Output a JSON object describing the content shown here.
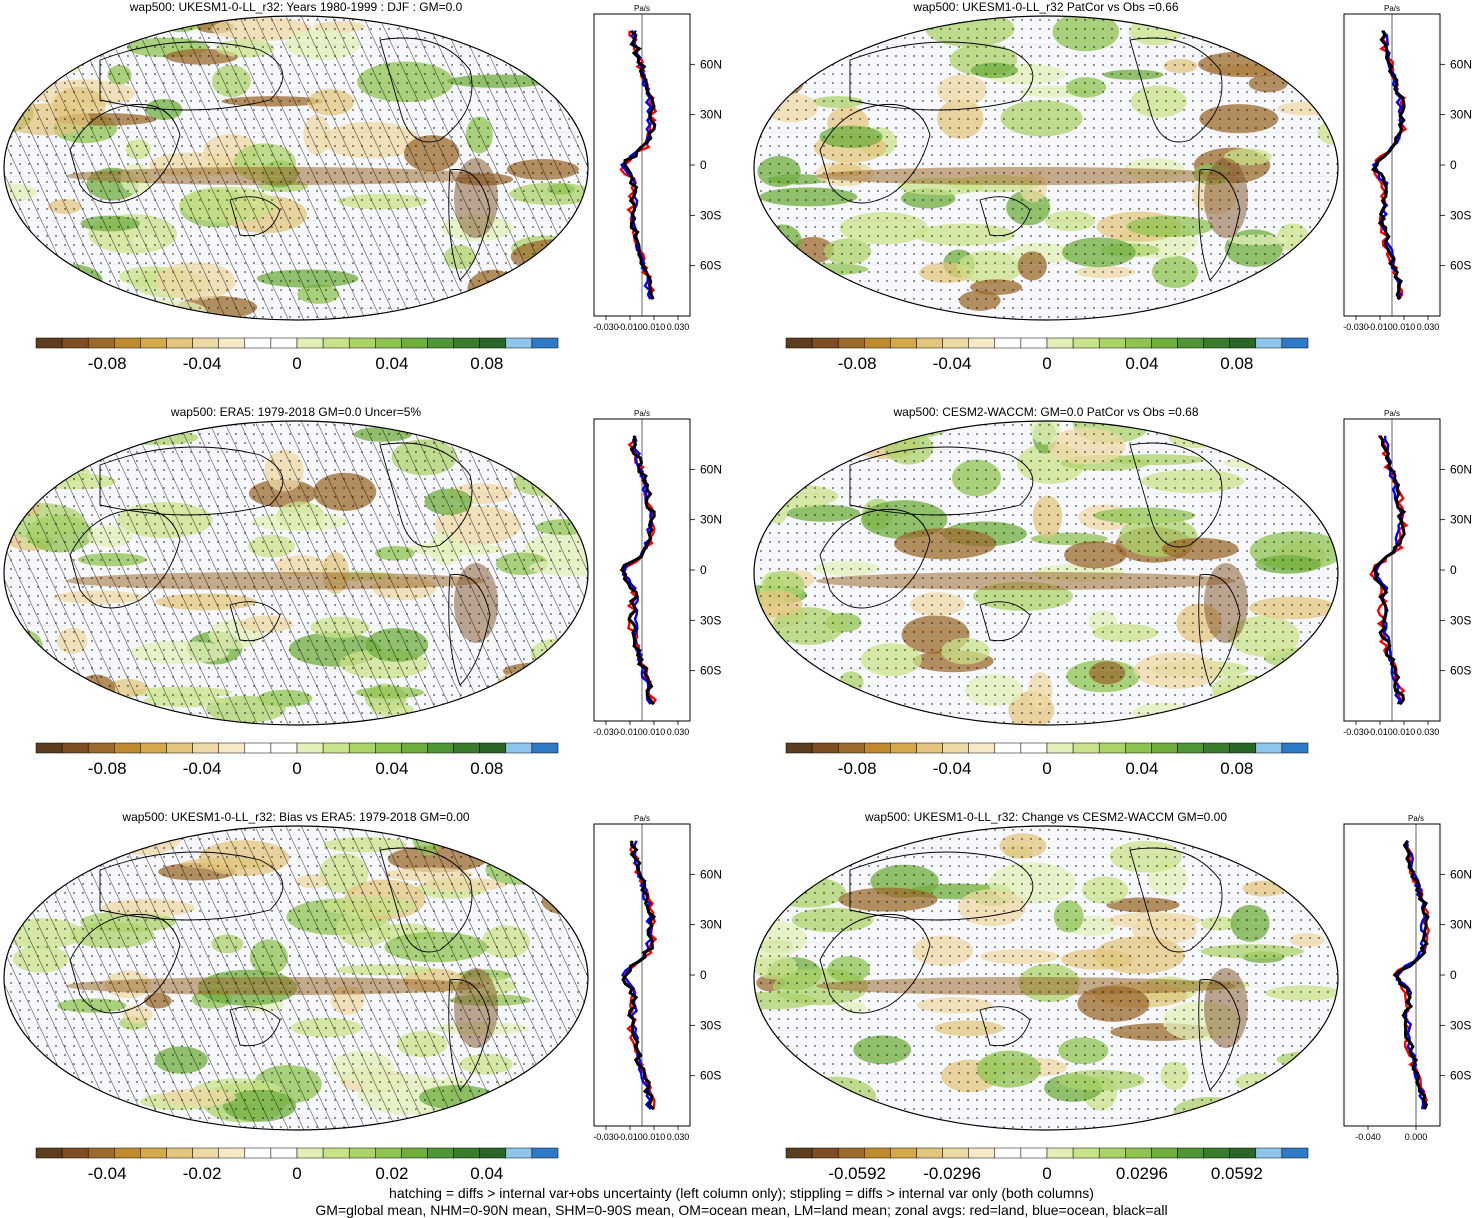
{
  "panels": [
    {
      "title": "wap500: UKESM1-0-LL_r32: Years 1980-1999 : DJF : GM=0.0",
      "hatched": true,
      "colorbar": {
        "ticks": [
          "-0.08",
          "-0.04",
          "0",
          "0.04",
          "0.08"
        ],
        "range": [
          -0.11,
          0.11
        ]
      },
      "profile": {
        "unit": "Pa/s",
        "xticks": [
          "-0.030",
          "-0.010",
          "0.010",
          "0.030"
        ],
        "xlim": [
          -0.04,
          0.04
        ],
        "lat_labels": [
          "60N",
          "30N",
          "0",
          "30S",
          "60S"
        ]
      }
    },
    {
      "title": "wap500: UKESM1-0-LL_r32 PatCor vs Obs =0.66",
      "hatched": false,
      "colorbar": {
        "ticks": [
          "-0.08",
          "-0.04",
          "0",
          "0.04",
          "0.08"
        ],
        "range": [
          -0.11,
          0.11
        ]
      },
      "profile": {
        "unit": "Pa/s",
        "xticks": [
          "-0.030",
          "-0.010",
          "0.010",
          "0.030"
        ],
        "xlim": [
          -0.04,
          0.04
        ],
        "lat_labels": [
          "60N",
          "30N",
          "0",
          "30S",
          "60S"
        ]
      }
    },
    {
      "title": "wap500: ERA5: 1979-2018 GM=0.0 Uncer=5%",
      "hatched": true,
      "colorbar": {
        "ticks": [
          "-0.08",
          "-0.04",
          "0",
          "0.04",
          "0.08"
        ],
        "range": [
          -0.11,
          0.11
        ]
      },
      "profile": {
        "unit": "Pa/s",
        "xticks": [
          "-0.030",
          "-0.010",
          "0.010",
          "0.030"
        ],
        "xlim": [
          -0.04,
          0.04
        ],
        "lat_labels": [
          "60N",
          "30N",
          "0",
          "30S",
          "60S"
        ]
      }
    },
    {
      "title": "wap500: CESM2-WACCM: GM=0.0 PatCor vs Obs =0.68",
      "hatched": false,
      "colorbar": {
        "ticks": [
          "-0.08",
          "-0.04",
          "0",
          "0.04",
          "0.08"
        ],
        "range": [
          -0.11,
          0.11
        ]
      },
      "profile": {
        "unit": "Pa/s",
        "xticks": [
          "-0.030",
          "-0.010",
          "0.010",
          "0.030"
        ],
        "xlim": [
          -0.04,
          0.04
        ],
        "lat_labels": [
          "60N",
          "30N",
          "0",
          "30S",
          "60S"
        ]
      }
    },
    {
      "title": "wap500: UKESM1-0-LL_r32: Bias vs ERA5: 1979-2018 GM=0.00",
      "hatched": true,
      "colorbar": {
        "ticks": [
          "-0.04",
          "-0.02",
          "0",
          "0.02",
          "0.04"
        ],
        "range": [
          -0.055,
          0.055
        ]
      },
      "profile": {
        "unit": "Pa/s",
        "xticks": [
          "-0.030",
          "-0.010",
          "0.010",
          "0.030"
        ],
        "xlim": [
          -0.04,
          0.04
        ],
        "lat_labels": [
          "60N",
          "30N",
          "0",
          "30S",
          "60S"
        ]
      }
    },
    {
      "title": "wap500: UKESM1-0-LL_r32: Change vs CESM2-WACCM GM=0.00",
      "hatched": false,
      "colorbar": {
        "ticks": [
          "-0.0592",
          "-0.0296",
          "0",
          "0.0296",
          "0.0592"
        ],
        "range": [
          -0.0814,
          0.0814
        ]
      },
      "profile": {
        "unit": "Pa/s",
        "xticks": [
          "-0.040",
          "0.000"
        ],
        "xlim": [
          -0.06,
          0.02
        ],
        "lat_labels": [
          "60N",
          "30N",
          "0",
          "30S",
          "60S"
        ]
      }
    }
  ],
  "colormap": [
    "#5e3c1e",
    "#7d4e24",
    "#9b6a2c",
    "#c08b2e",
    "#d4a94a",
    "#e3c57e",
    "#eedaa6",
    "#f5e9c8",
    "#ffffff",
    "#ffffff",
    "#e2f0b8",
    "#c9e38a",
    "#acd36a",
    "#8fc350",
    "#6fae3d",
    "#4f9634",
    "#387c2c",
    "#2a6628",
    "#8ec5ec",
    "#2f7ac6"
  ],
  "colors": {
    "land": "#ff0000",
    "ocean": "#0000ff",
    "all": "#000000"
  },
  "footnote": [
    "hatching = diffs > internal var+obs uncertainty (left column only); stippling = diffs > internal var only (both columns)",
    "GM=global mean, NHM=0-90N mean, SHM=0-90S mean, OM=ocean mean, LM=land mean; zonal avgs: red=land, blue=ocean, black=all"
  ]
}
